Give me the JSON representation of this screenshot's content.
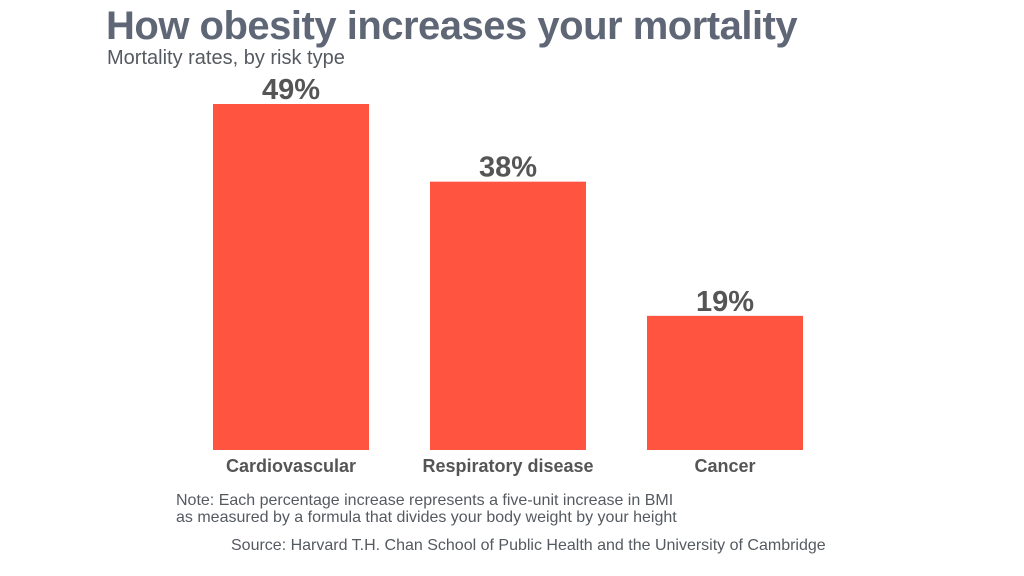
{
  "header": {
    "title": "How obesity increases your mortality",
    "subtitle": "Mortality rates, by risk type"
  },
  "footer": {
    "note_line1": "Note: Each percentage increase represents a five-unit increase in BMI",
    "note_line2": "as measured by a formula that divides your body weight by your height",
    "source": "Source: Harvard T.H. Chan School of Public Health and the University of Cambridge"
  },
  "colors": {
    "bar": "#ff5540",
    "value_label": "#555555",
    "category_label": "#555555"
  },
  "chart_data": {
    "type": "bar",
    "title": "How obesity increases your mortality",
    "subtitle": "Mortality rates, by risk type",
    "categories": [
      "Cardiovascular",
      "Respiratory disease",
      "Cancer"
    ],
    "values": [
      49,
      38,
      19
    ],
    "value_labels": [
      "49%",
      "38%",
      "19%"
    ],
    "xlabel": "",
    "ylabel": "",
    "ylim": [
      0,
      49
    ],
    "grid": false,
    "legend": "none"
  }
}
